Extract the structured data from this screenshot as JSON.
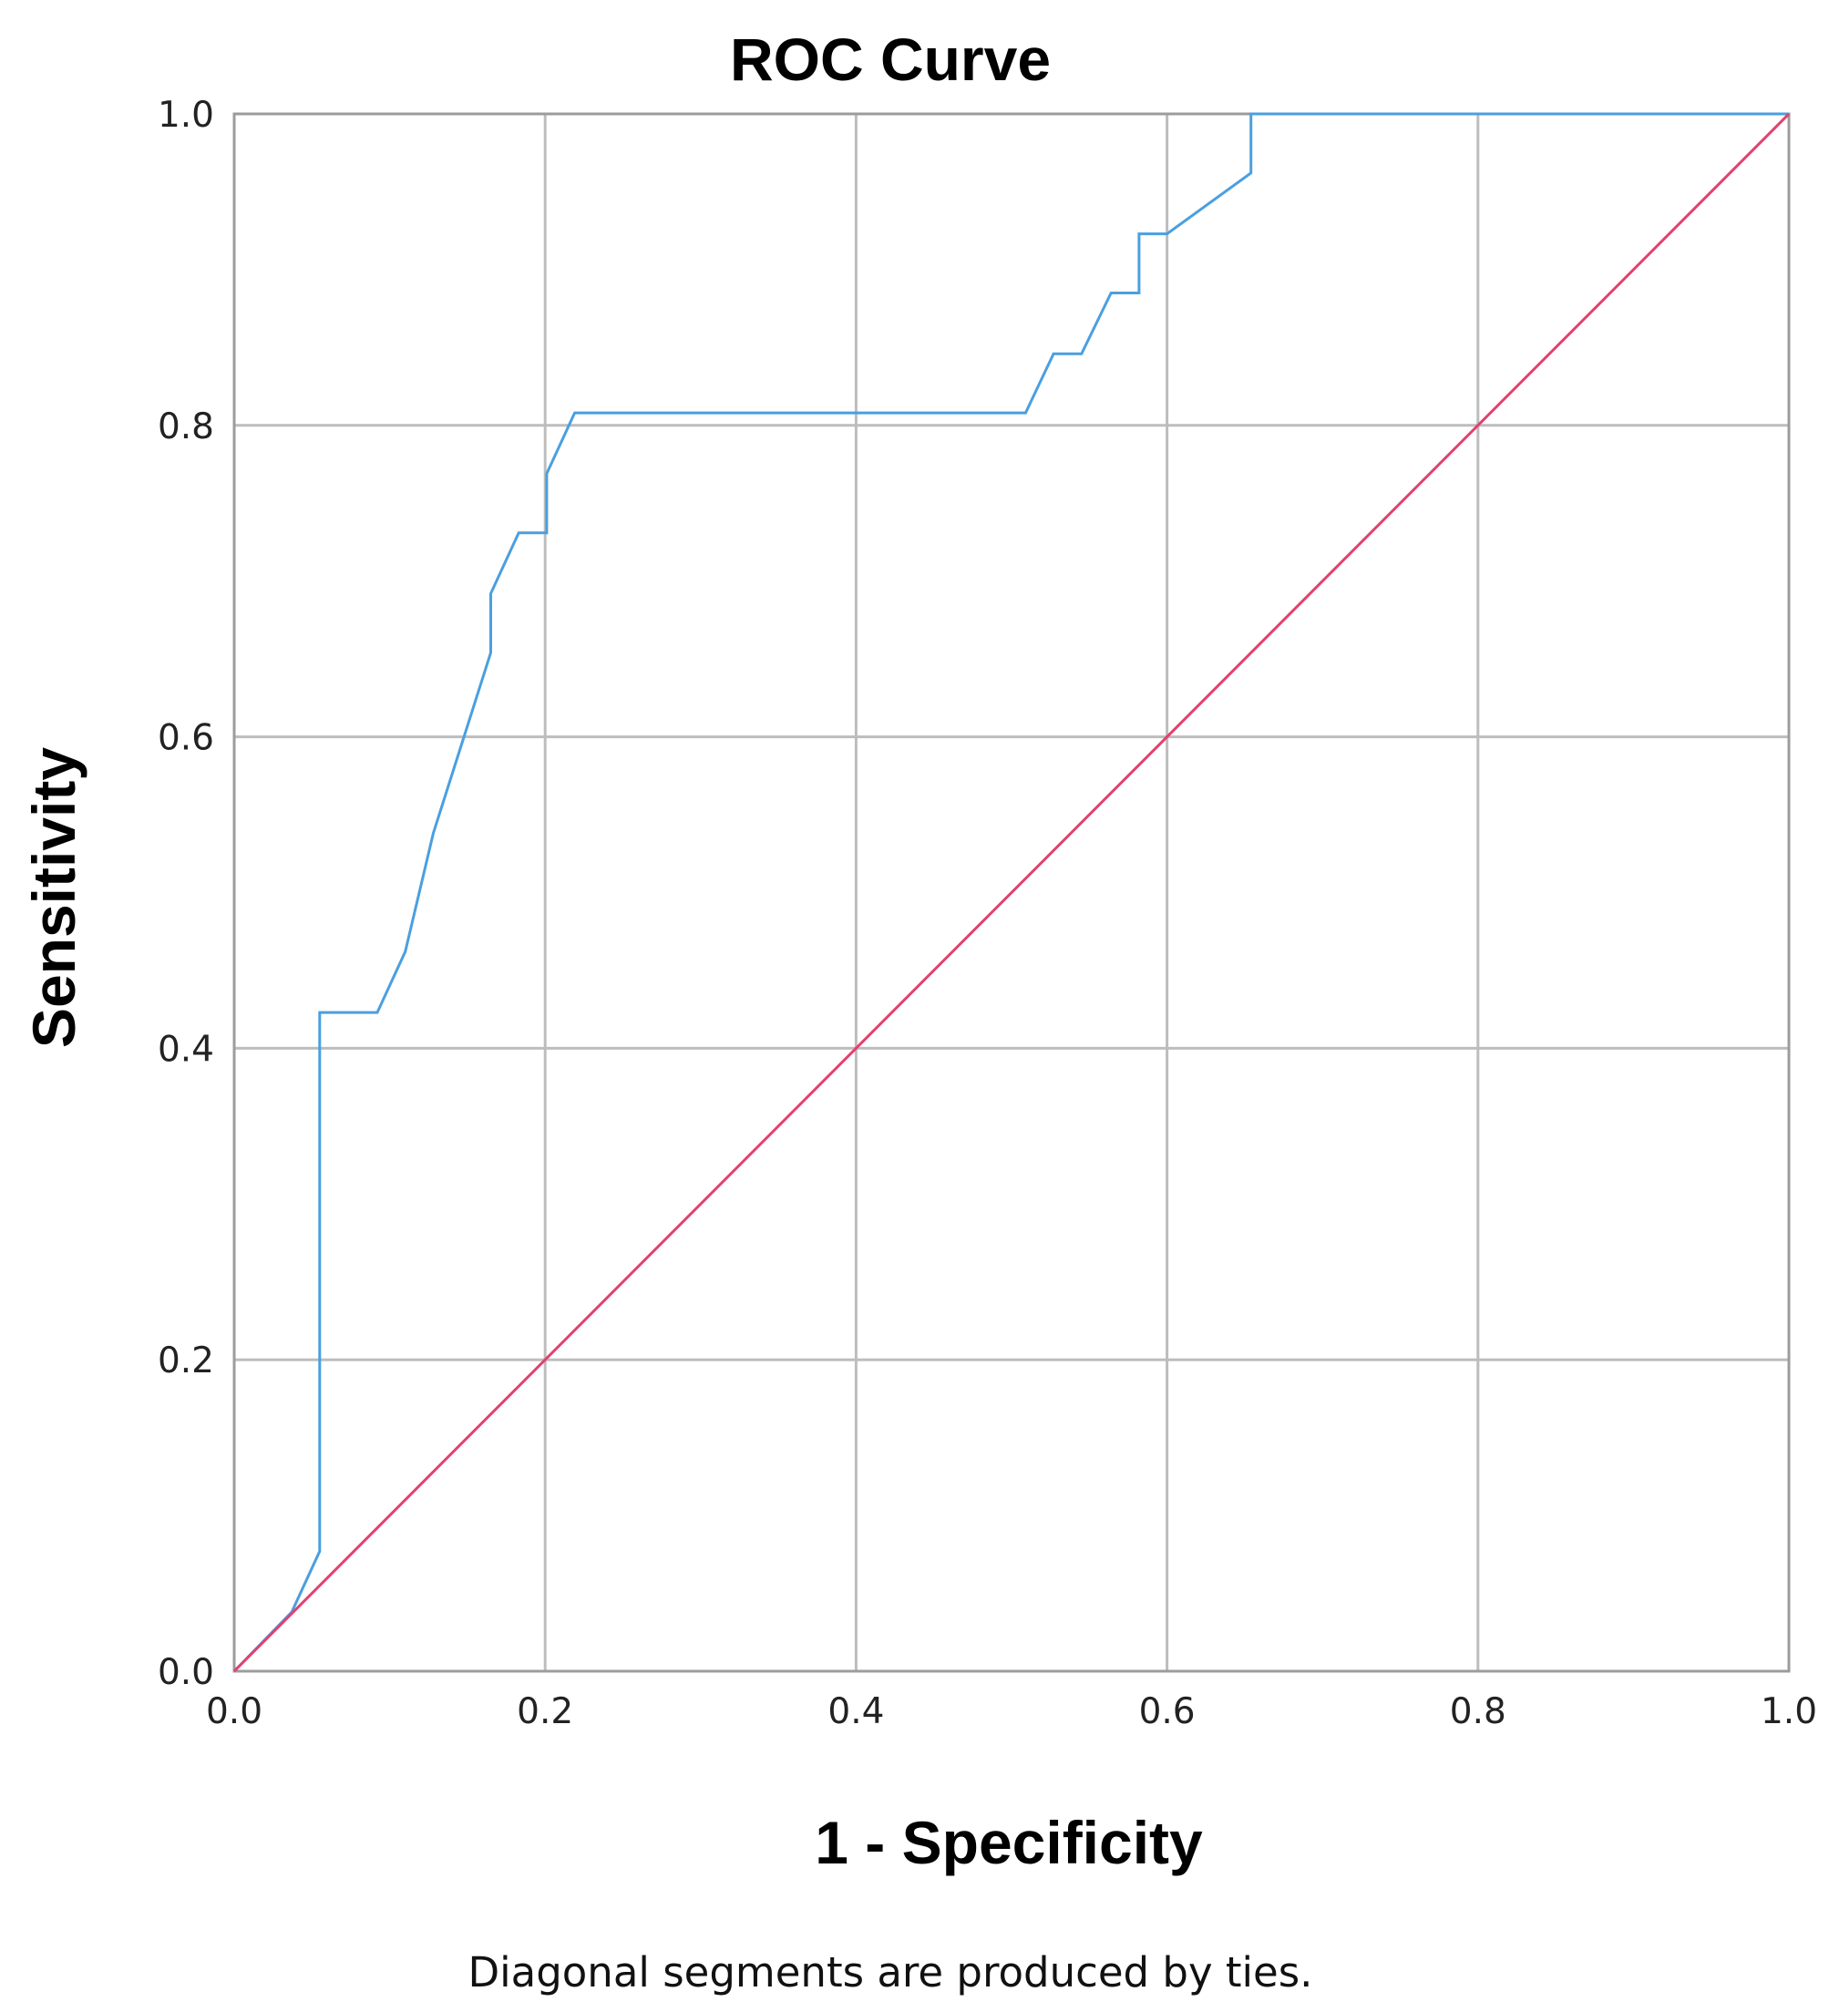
{
  "footnote": "Diagonal segments are produced by ties.",
  "chart_data": {
    "type": "line",
    "title": "ROC Curve",
    "xlabel": "1 - Specificity",
    "ylabel": "Sensitivity",
    "xlim": [
      0,
      1
    ],
    "ylim": [
      0,
      1
    ],
    "x_ticks": [
      "0.0",
      "0.2",
      "0.4",
      "0.6",
      "0.8",
      "1.0"
    ],
    "y_ticks": [
      "0.0",
      "0.2",
      "0.4",
      "0.6",
      "0.8",
      "1.0"
    ],
    "grid": true,
    "legend": "none",
    "series": [
      {
        "color": "#4a9fe0",
        "x": [
          0.0,
          0.037,
          0.055,
          0.055,
          0.092,
          0.11,
          0.128,
          0.165,
          0.165,
          0.183,
          0.201,
          0.201,
          0.219,
          0.509,
          0.527,
          0.545,
          0.564,
          0.582,
          0.582,
          0.6,
          0.654,
          0.654,
          1.0
        ],
        "y": [
          0.0,
          0.038,
          0.077,
          0.423,
          0.423,
          0.462,
          0.538,
          0.654,
          0.692,
          0.731,
          0.731,
          0.769,
          0.808,
          0.808,
          0.846,
          0.846,
          0.885,
          0.885,
          0.923,
          0.923,
          0.962,
          1.0,
          1.0
        ]
      },
      {
        "color": "#e4406e",
        "x": [
          0,
          1
        ],
        "y": [
          0,
          1
        ]
      }
    ]
  }
}
